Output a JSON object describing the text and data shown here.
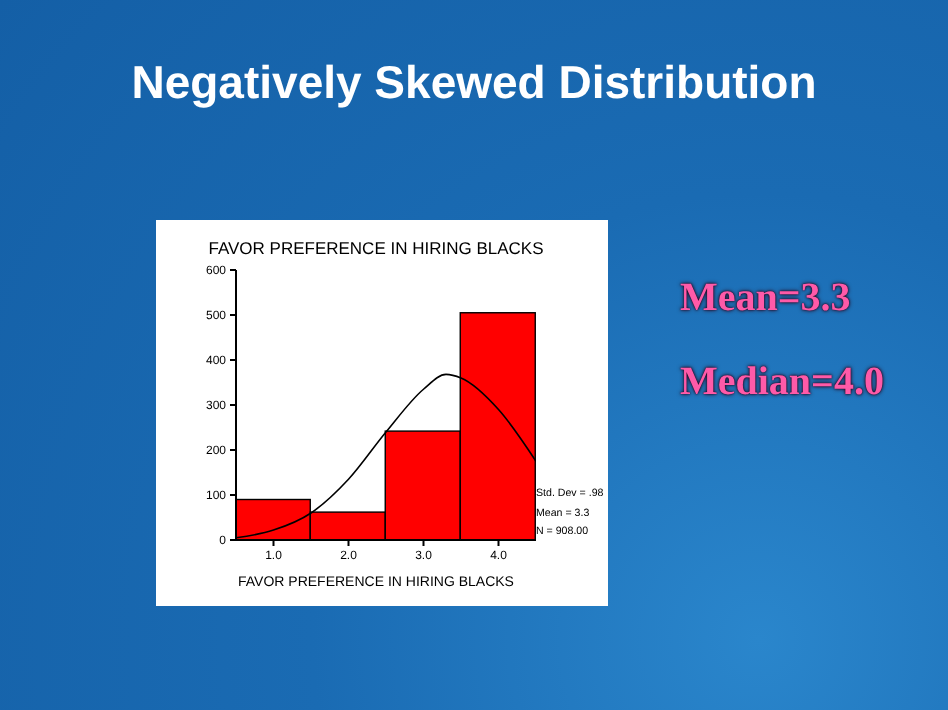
{
  "chart_data": {
    "type": "histogram",
    "title": "Negatively Skewed Distribution",
    "subtitle": "FAVOR PREFERENCE IN HIRING BLACKS",
    "xlabel": "FAVOR PREFERENCE IN HIRING BLACKS",
    "bins": [
      0.5,
      1.5,
      2.5,
      3.5,
      4.5
    ],
    "values": [
      90,
      62,
      242,
      505
    ],
    "color": "#ff0000",
    "series": [
      {
        "type": "line",
        "color": "#000000",
        "x": [
          0.5,
          1.0,
          1.5,
          2.0,
          2.5,
          3.0,
          3.3,
          3.5,
          4.0,
          4.5
        ],
        "values": [
          5,
          22,
          60,
          135,
          240,
          335,
          368,
          360,
          290,
          175
        ]
      }
    ],
    "xlim": [
      0.5,
      4.5
    ],
    "xticks": [
      {
        "value": 1,
        "label": "1.0"
      },
      {
        "value": 2,
        "label": "2.0"
      },
      {
        "value": 3,
        "label": "3.0"
      },
      {
        "value": 4,
        "label": "4.0"
      }
    ],
    "ylim": [
      0,
      600
    ],
    "yticks": [
      0,
      100,
      200,
      300,
      400,
      500,
      600
    ],
    "annotations": [
      "Std. Dev = .98",
      "Mean = 3.3",
      "N = 908.00",
      "Mean=3.3",
      "Median=4.0"
    ]
  }
}
